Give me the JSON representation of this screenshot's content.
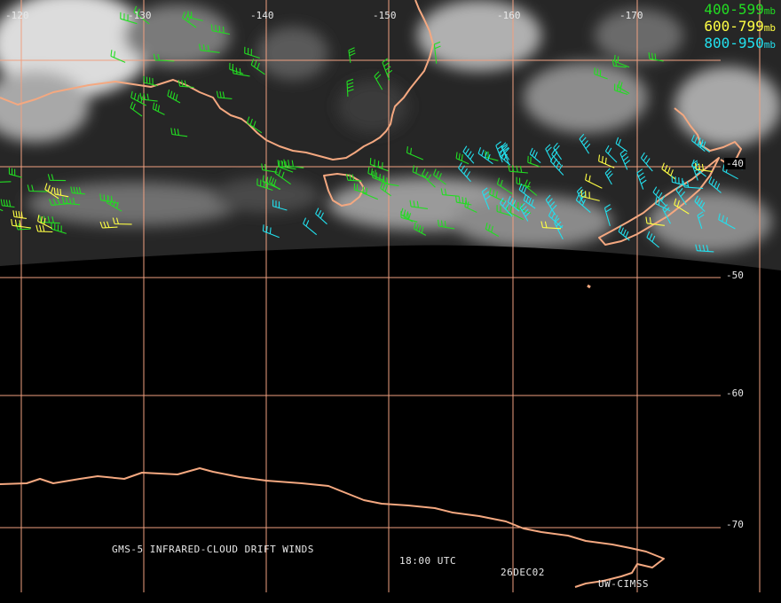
{
  "map": {
    "longitude_labels": [
      "-120",
      "-130",
      "-140",
      "-150",
      "-160",
      "-170"
    ],
    "latitude_labels": [
      "-40",
      "-50",
      "-60",
      "-70"
    ],
    "grid_color": "#f0a080",
    "coast_color": "#f4a880"
  },
  "legend": {
    "items": [
      {
        "range": "400-599",
        "unit": "mb",
        "color": "#22dd22"
      },
      {
        "range": "600-799",
        "unit": "mb",
        "color": "#ffff44"
      },
      {
        "range": "800-950",
        "unit": "mb",
        "color": "#22e0ee"
      }
    ]
  },
  "caption": {
    "product": "GMS-5 INFRARED-CLOUD DRIFT WINDS",
    "time": "18:00 UTC",
    "date": "26DEC02",
    "source": "UW-CIMSS"
  }
}
